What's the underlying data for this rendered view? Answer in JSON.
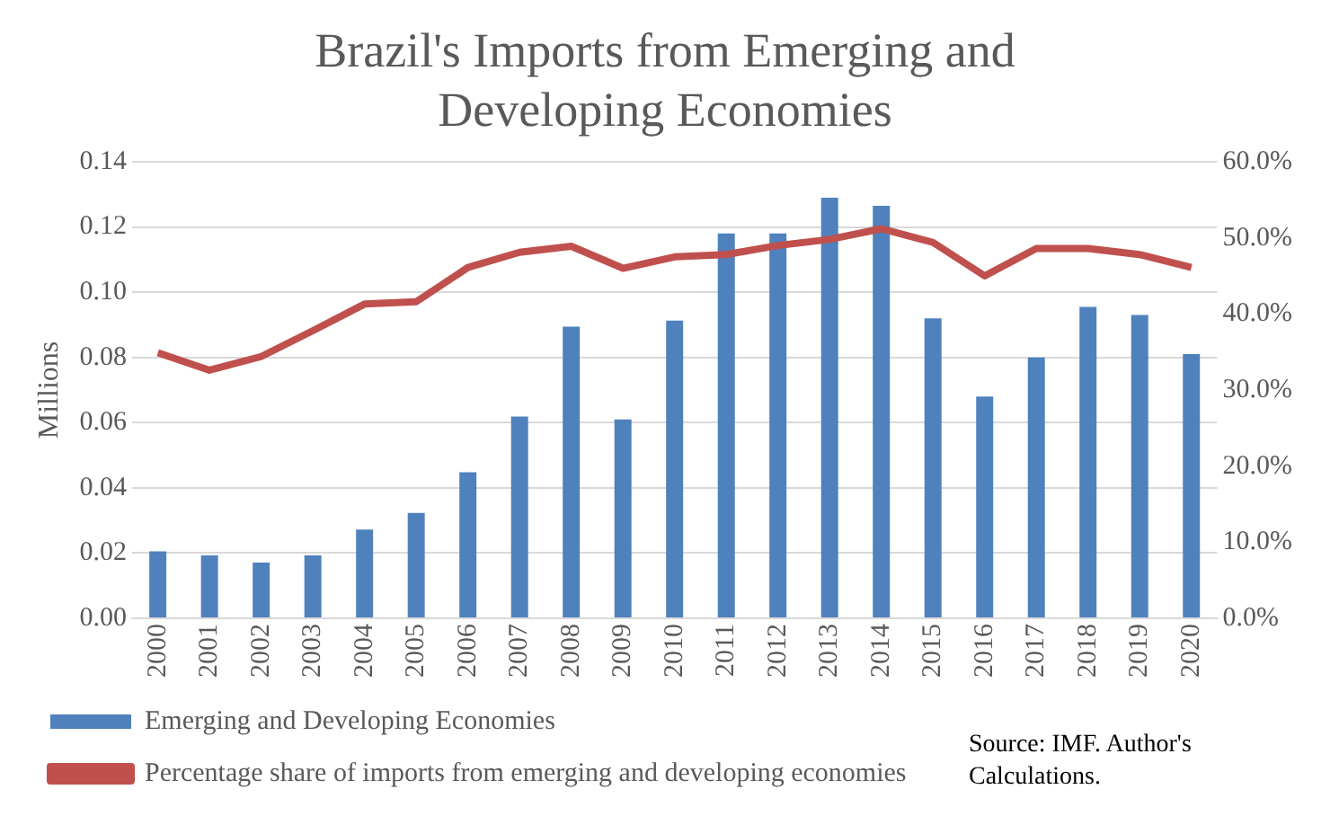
{
  "chart_data": {
    "type": "bar",
    "title": "Brazil's Imports from Emerging and Developing Economies",
    "ylabel": "Millions",
    "categories": [
      "2000",
      "2001",
      "2002",
      "2003",
      "2004",
      "2005",
      "2006",
      "2007",
      "2008",
      "2009",
      "2010",
      "2011",
      "2012",
      "2013",
      "2014",
      "2015",
      "2016",
      "2017",
      "2018",
      "2019",
      "2020"
    ],
    "series": [
      {
        "name": "Emerging and Developing Economies",
        "color": "#4f81bd",
        "values": [
          0.0205,
          0.0193,
          0.0171,
          0.0193,
          0.0272,
          0.0323,
          0.0448,
          0.0619,
          0.0894,
          0.061,
          0.0913,
          0.118,
          0.118,
          0.129,
          0.1265,
          0.092,
          0.068,
          0.08,
          0.0955,
          0.093,
          0.081
        ]
      },
      {
        "name": "Percentage share of imports from emerging and developing economies",
        "type": "line",
        "axis": "y2",
        "color": "#c0504d",
        "values": [
          34.9,
          32.6,
          34.4,
          37.8,
          41.3,
          41.6,
          46.1,
          48.1,
          48.9,
          46.0,
          47.5,
          47.8,
          49.0,
          49.8,
          51.2,
          49.4,
          45.0,
          48.6,
          48.6,
          47.8,
          46.1
        ]
      }
    ],
    "ylim": [
      0,
      0.14
    ],
    "yticks": [
      {
        "value": 0,
        "label": "0.00"
      },
      {
        "value": 0.02,
        "label": "0.02"
      },
      {
        "value": 0.04,
        "label": "0.04"
      },
      {
        "value": 0.06,
        "label": "0.06"
      },
      {
        "value": 0.08,
        "label": "0.08"
      },
      {
        "value": 0.1,
        "label": "0.10"
      },
      {
        "value": 0.12,
        "label": "0.12"
      },
      {
        "value": 0.14,
        "label": "0.14"
      }
    ],
    "y2lim": [
      0,
      60
    ],
    "y2ticks": [
      {
        "value": 0,
        "label": "0.0%"
      },
      {
        "value": 10,
        "label": "10.0%"
      },
      {
        "value": 20,
        "label": "20.0%"
      },
      {
        "value": 30,
        "label": "30.0%"
      },
      {
        "value": 40,
        "label": "40.0%"
      },
      {
        "value": 50,
        "label": "50.0%"
      },
      {
        "value": 60,
        "label": "60.0%"
      }
    ],
    "grid": "y",
    "legend": "bottom",
    "marker": "none",
    "line_style": "solid",
    "annotations": [
      "Source: IMF. Author's Calculations."
    ]
  }
}
